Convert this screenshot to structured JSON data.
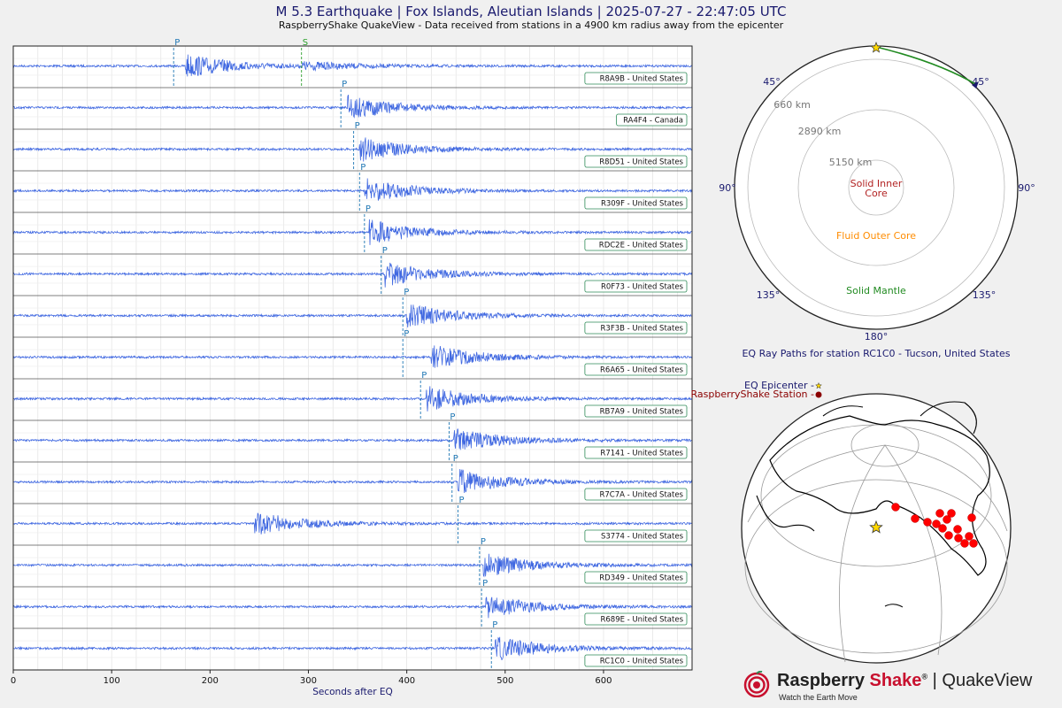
{
  "header": {
    "title": "M 5.3 Earthquake | Fox Islands, Aleutian Islands | 2025-07-27 - 22:47:05 UTC",
    "subtitle": "RaspberryShake QuakeView - Data received from stations in a 4900 km radius away from the epicenter"
  },
  "chart_data": [
    {
      "type": "line",
      "chart_kind": "seismogram-record-section",
      "xlabel": "Seconds after EQ",
      "xlim": [
        0,
        690
      ],
      "xticks": [
        0,
        100,
        200,
        300,
        400,
        500,
        600
      ],
      "trace_color": "#4169e1",
      "grid": true,
      "stations": [
        {
          "label": "R8A9B - United States",
          "p": 163,
          "s": 293,
          "burst": 175
        },
        {
          "label": "RA4F4 - Canada",
          "p": 333,
          "burst": 340
        },
        {
          "label": "R8D51 - United States",
          "p": 346,
          "burst": 352
        },
        {
          "label": "R309F - United States",
          "p": 352,
          "burst": 357
        },
        {
          "label": "RDC2E - United States",
          "p": 357,
          "burst": 362
        },
        {
          "label": "R0F73 - United States",
          "p": 374,
          "burst": 378
        },
        {
          "label": "R3F3B - United States",
          "p": 396,
          "burst": 400
        },
        {
          "label": "R6A65 - United States",
          "p": 396,
          "burst": 425
        },
        {
          "label": "RB7A9 - United States",
          "p": 414,
          "burst": 420
        },
        {
          "label": "R7141 - United States",
          "p": 443,
          "burst": 448
        },
        {
          "label": "R7C7A - United States",
          "p": 446,
          "burst": 452
        },
        {
          "label": "S3774 - United States",
          "p": 452,
          "burst": 245
        },
        {
          "label": "RD349 - United States",
          "p": 474,
          "burst": 478
        },
        {
          "label": "R689E - United States",
          "p": 476,
          "burst": 480
        },
        {
          "label": "RC1C0 - United States",
          "p": 486,
          "burst": 490
        }
      ]
    },
    {
      "type": "other",
      "chart_kind": "earth-cross-section-ray-paths",
      "caption": "EQ Ray Paths for station RC1C0 - Tucson, United States",
      "angle_labels": [
        "45°",
        "45°",
        "90°",
        "90°",
        "135°",
        "135°",
        "180°"
      ],
      "layers": [
        {
          "name": "Solid Inner Core",
          "color": "#b22222"
        },
        {
          "name": "Fluid Outer Core",
          "color": "#ff8c00"
        },
        {
          "name": "Solid Mantle",
          "color": "#228b22"
        }
      ],
      "depth_labels": [
        "660 km",
        "2890 km",
        "5150 km"
      ],
      "ray_color": "#228b22",
      "epicenter_color": "#ffd700"
    },
    {
      "type": "other",
      "chart_kind": "globe-map",
      "legend": {
        "epicenter": "EQ Epicenter -",
        "station": "RaspberryShake Station -"
      },
      "station_color": "#ff0000",
      "epicenter_color": "#ffd700"
    }
  ],
  "brand": {
    "name_main": "Raspberry ",
    "name_accent": "Shake",
    "name_reg": "®",
    "name_rest": " | QuakeView",
    "tagline": "Watch the Earth Move"
  }
}
